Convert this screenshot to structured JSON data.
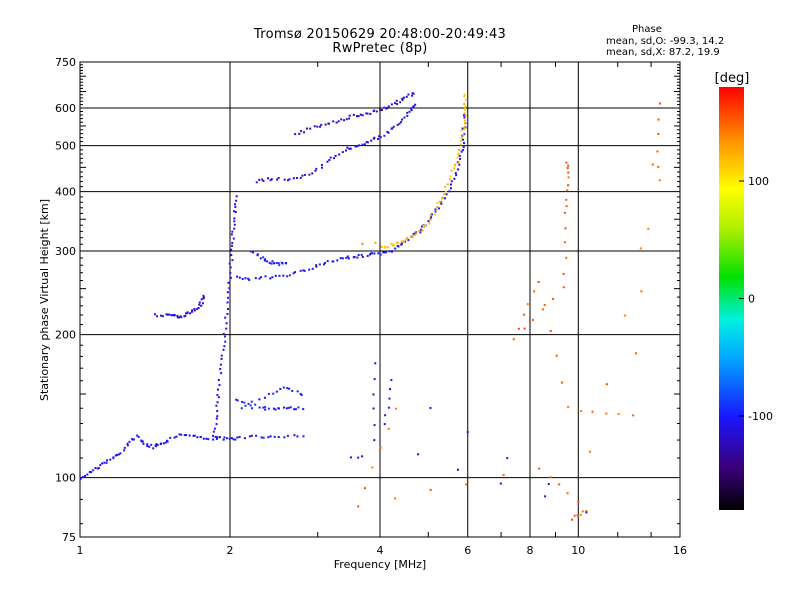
{
  "chart_data": {
    "type": "scatter",
    "title": "Tromsø 20150629 20:48:00-20:49:43",
    "subtitle": "RwPretec (8p)",
    "xlabel": "Frequency [MHz]",
    "ylabel": "Stationary phase Virtual Height [km]",
    "x_scale": "log",
    "y_scale": "log",
    "xlim": [
      1,
      16
    ],
    "ylim": [
      75,
      750
    ],
    "x_ticks": [
      1,
      2,
      4,
      6,
      8,
      10,
      16
    ],
    "y_ticks": [
      75,
      100,
      200,
      300,
      400,
      500,
      600,
      750
    ],
    "grid": true,
    "colorbar": {
      "label": "[deg]",
      "range": [
        -180,
        180
      ],
      "ticks": [
        100,
        0,
        -100
      ]
    },
    "stats": {
      "heading": "Phase",
      "line_o": "mean, sd,O: -99.3, 14.2",
      "line_x": "mean, sd,X:  87.2, 19.9"
    },
    "traces": [
      {
        "phase": -105,
        "points": [
          [
            1.01,
            100
          ],
          [
            1.05,
            103
          ],
          [
            1.1,
            106
          ],
          [
            1.15,
            109
          ],
          [
            1.2,
            112
          ],
          [
            1.25,
            118
          ],
          [
            1.3,
            122
          ],
          [
            1.35,
            118
          ],
          [
            1.4,
            116
          ],
          [
            1.45,
            118
          ],
          [
            1.5,
            120
          ],
          [
            1.6,
            124
          ],
          [
            1.7,
            122
          ],
          [
            1.8,
            121
          ],
          [
            1.9,
            121
          ],
          [
            2.0,
            121
          ],
          [
            2.1,
            121
          ],
          [
            2.3,
            122
          ],
          [
            2.5,
            122
          ],
          [
            2.8,
            123
          ]
        ]
      },
      {
        "phase": -112,
        "points": [
          [
            1.42,
            220
          ],
          [
            1.5,
            220
          ],
          [
            1.55,
            218
          ],
          [
            1.6,
            218
          ],
          [
            1.65,
            222
          ],
          [
            1.7,
            226
          ],
          [
            1.75,
            233
          ],
          [
            1.78,
            240
          ]
        ]
      },
      {
        "phase": -108,
        "points": [
          [
            1.85,
            123
          ],
          [
            1.88,
            135
          ],
          [
            1.9,
            150
          ],
          [
            1.92,
            170
          ],
          [
            1.94,
            190
          ],
          [
            1.96,
            210
          ],
          [
            1.98,
            240
          ],
          [
            2.0,
            270
          ],
          [
            2.02,
            300
          ],
          [
            2.03,
            330
          ],
          [
            2.04,
            360
          ],
          [
            2.05,
            390
          ]
        ]
      },
      {
        "phase": -104,
        "points": [
          [
            2.06,
            265
          ],
          [
            2.2,
            262
          ],
          [
            2.4,
            264
          ],
          [
            2.6,
            267
          ],
          [
            2.8,
            272
          ],
          [
            3.0,
            280
          ],
          [
            3.2,
            286
          ],
          [
            3.4,
            290
          ],
          [
            3.6,
            292
          ],
          [
            3.8,
            294
          ],
          [
            4.0,
            296
          ],
          [
            4.2,
            300
          ],
          [
            4.4,
            310
          ],
          [
            4.6,
            320
          ],
          [
            4.8,
            330
          ],
          [
            5.0,
            345
          ],
          [
            5.2,
            365
          ],
          [
            5.4,
            390
          ],
          [
            5.6,
            420
          ],
          [
            5.75,
            455
          ],
          [
            5.85,
            490
          ],
          [
            5.9,
            530
          ],
          [
            5.9,
            580
          ]
        ]
      },
      {
        "phase": -98,
        "points": [
          [
            2.2,
            300
          ],
          [
            2.3,
            290
          ],
          [
            2.4,
            285
          ],
          [
            2.5,
            282
          ],
          [
            2.6,
            282
          ]
        ]
      },
      {
        "phase": -110,
        "points": [
          [
            2.25,
            420
          ],
          [
            2.4,
            425
          ],
          [
            2.6,
            425
          ],
          [
            2.8,
            430
          ],
          [
            3.0,
            445
          ],
          [
            3.2,
            470
          ],
          [
            3.4,
            490
          ],
          [
            3.6,
            500
          ],
          [
            3.8,
            510
          ],
          [
            4.0,
            520
          ],
          [
            4.2,
            540
          ],
          [
            4.4,
            560
          ],
          [
            4.6,
            590
          ],
          [
            4.7,
            610
          ]
        ]
      },
      {
        "phase": -115,
        "points": [
          [
            2.7,
            525
          ],
          [
            2.9,
            545
          ],
          [
            3.1,
            555
          ],
          [
            3.3,
            565
          ],
          [
            3.5,
            575
          ],
          [
            3.7,
            580
          ],
          [
            3.9,
            590
          ],
          [
            4.1,
            600
          ],
          [
            4.3,
            615
          ],
          [
            4.5,
            630
          ],
          [
            4.7,
            645
          ]
        ]
      },
      {
        "phase": 120,
        "points": [
          [
            4.0,
            305
          ],
          [
            4.2,
            308
          ],
          [
            4.4,
            312
          ],
          [
            4.6,
            320
          ],
          [
            4.8,
            330
          ],
          [
            5.0,
            345
          ],
          [
            5.2,
            370
          ],
          [
            5.4,
            400
          ],
          [
            5.6,
            440
          ],
          [
            5.75,
            470
          ],
          [
            5.85,
            520
          ],
          [
            5.9,
            560
          ],
          [
            5.95,
            600
          ],
          [
            5.9,
            640
          ]
        ]
      },
      {
        "phase": 140,
        "points": [
          [
            3.7,
            310
          ],
          [
            3.9,
            312
          ]
        ]
      },
      {
        "phase": -100,
        "points": [
          [
            2.05,
            145
          ],
          [
            2.2,
            142
          ],
          [
            2.4,
            140
          ],
          [
            2.6,
            140
          ],
          [
            2.8,
            140
          ],
          [
            2.1,
            140
          ],
          [
            2.4,
            150
          ],
          [
            2.6,
            155
          ],
          [
            2.8,
            150
          ]
        ]
      },
      {
        "phase": -110,
        "points": [
          [
            3.5,
            110
          ],
          [
            3.6,
            110
          ],
          [
            3.7,
            111
          ]
        ]
      },
      {
        "phase": 150,
        "points": [
          [
            9.5,
            460
          ],
          [
            9.5,
            430
          ],
          [
            9.4,
            360
          ],
          [
            9.4,
            250
          ],
          [
            7.4,
            195
          ],
          [
            8.3,
            260
          ],
          [
            9.5,
            140
          ],
          [
            12.8,
            135
          ],
          [
            14.5,
            615
          ],
          [
            14.5,
            420
          ],
          [
            9.7,
            82
          ],
          [
            10.4,
            85
          ],
          [
            8.4,
            105
          ],
          [
            3.6,
            87
          ],
          [
            4.3,
            140
          ]
        ]
      },
      {
        "phase": -110,
        "points": [
          [
            4.1,
            130
          ],
          [
            4.2,
            160
          ],
          [
            10.4,
            85
          ],
          [
            3.9,
            120
          ],
          [
            3.9,
            175
          ]
        ]
      }
    ]
  }
}
